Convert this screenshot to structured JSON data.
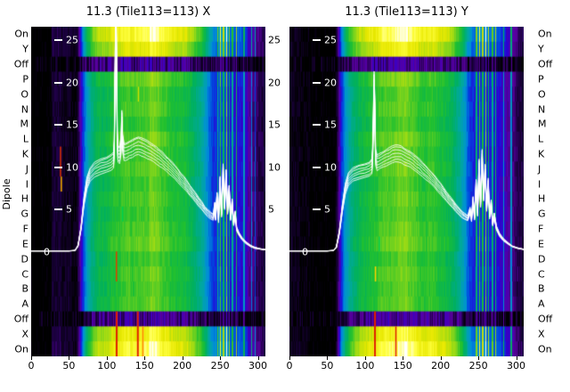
{
  "figure": {
    "ylabel": "Dipole",
    "background": "#ffffff"
  },
  "panels": [
    {
      "title": "11.3 (Tile113=113) X"
    },
    {
      "title": "11.3 (Tile113=113) Y"
    }
  ],
  "axes": {
    "x_ticks": [
      0,
      50,
      100,
      150,
      200,
      250,
      300
    ],
    "y_ticks_inside": [
      25,
      20,
      15,
      10,
      5,
      0
    ],
    "y_ticks_gap": [
      25,
      20,
      15,
      10,
      5
    ],
    "dipole_labels": [
      "On",
      "Y",
      "Off",
      "P",
      "O",
      "N",
      "M",
      "L",
      "K",
      "J",
      "I",
      "H",
      "G",
      "F",
      "E",
      "D",
      "C",
      "B",
      "A",
      "Off",
      "X",
      "On"
    ]
  },
  "style": {
    "line_color": "#ffffff",
    "tick_label_color": "#000000",
    "inside_tick_color": "#ffffff"
  },
  "chart_data": [
    {
      "type": "heatmap+line",
      "title": "11.3 (Tile113=113) X",
      "xlabel": "",
      "ylabel": "Dipole",
      "x_range": [
        0,
        310
      ],
      "y_range": [
        0,
        25
      ],
      "x_ticks": [
        0,
        50,
        100,
        150,
        200,
        250,
        300
      ],
      "rows": [
        "On",
        "Y",
        "Off",
        "P",
        "O",
        "N",
        "M",
        "L",
        "K",
        "J",
        "I",
        "H",
        "G",
        "F",
        "E",
        "D",
        "C",
        "B",
        "A",
        "Off",
        "X",
        "On"
      ],
      "row_gains": [
        1.38,
        1.26,
        0.2,
        1.04,
        0.98,
        1.0,
        0.96,
        1.02,
        0.99,
        1.01,
        0.97,
        1.0,
        0.98,
        1.01,
        1.03,
        0.97,
        1.0,
        0.98,
        1.0,
        0.2,
        1.3,
        1.38
      ],
      "profile": [
        [
          0,
          0.02
        ],
        [
          60,
          0.02
        ],
        [
          64,
          0.12
        ],
        [
          68,
          0.26
        ],
        [
          73,
          0.38
        ],
        [
          80,
          0.47
        ],
        [
          88,
          0.53
        ],
        [
          100,
          0.56
        ],
        [
          115,
          0.58
        ],
        [
          130,
          0.61
        ],
        [
          145,
          0.64
        ],
        [
          160,
          0.65
        ],
        [
          175,
          0.61
        ],
        [
          190,
          0.59
        ],
        [
          205,
          0.56
        ],
        [
          215,
          0.51
        ],
        [
          225,
          0.43
        ],
        [
          233,
          0.34
        ],
        [
          240,
          0.27
        ],
        [
          248,
          0.24
        ],
        [
          258,
          0.24
        ],
        [
          268,
          0.23
        ],
        [
          275,
          0.2
        ],
        [
          282,
          0.17
        ],
        [
          290,
          0.14
        ],
        [
          300,
          0.1
        ],
        [
          310,
          0.07
        ]
      ],
      "streaks": [
        [
          246,
          0.22
        ],
        [
          250,
          0.34
        ],
        [
          254,
          0.26
        ],
        [
          258,
          0.4
        ],
        [
          262,
          0.28
        ],
        [
          266,
          0.22
        ],
        [
          271,
          0.32
        ],
        [
          281,
          0.18
        ],
        [
          291,
          0.22
        ],
        [
          296,
          0.18
        ]
      ],
      "specks": [
        {
          "c": 38,
          "r": 8,
          "n": 2,
          "col": "#e03000",
          "w": 1.5
        },
        {
          "c": 39,
          "r": 10,
          "n": 1,
          "col": "#ffb000",
          "w": 1.5
        },
        {
          "c": 112,
          "r": 15,
          "n": 2,
          "col": "#e04000",
          "w": 1.5
        },
        {
          "c": 112,
          "r": 19,
          "n": 3,
          "col": "#e02000",
          "w": 2
        },
        {
          "c": 120,
          "r": 12,
          "n": 1,
          "col": "#00d050",
          "w": 1.5
        },
        {
          "c": 140,
          "r": 19,
          "n": 3,
          "col": "#e02000",
          "w": 2
        },
        {
          "c": 141,
          "r": 4,
          "n": 1,
          "col": "#cce000",
          "w": 1.5
        },
        {
          "c": 147,
          "r": 20,
          "n": 2,
          "col": "#ff8000",
          "w": 1.5
        }
      ],
      "line_scales": [
        1,
        0.97,
        0.94,
        0.91,
        0.88,
        1.015,
        0.855
      ],
      "line_keypoints": [
        [
          0,
          0.15
        ],
        [
          50,
          0.15
        ],
        [
          58,
          0.2
        ],
        [
          62,
          0.8
        ],
        [
          66,
          3
        ],
        [
          70,
          6.5
        ],
        [
          74,
          8.8
        ],
        [
          78,
          9.8
        ],
        [
          84,
          10.4
        ],
        [
          92,
          10.8
        ],
        [
          100,
          11
        ],
        [
          106,
          11.3
        ],
        [
          109,
          11.6
        ],
        [
          110,
          13
        ],
        [
          111,
          22
        ],
        [
          112,
          29
        ],
        [
          113,
          25
        ],
        [
          114,
          14
        ],
        [
          115,
          12.4
        ],
        [
          117,
          12.2
        ],
        [
          119,
          13.5
        ],
        [
          120,
          16.5
        ],
        [
          121,
          13.8
        ],
        [
          123,
          12.6
        ],
        [
          126,
          12.7
        ],
        [
          130,
          12.9
        ],
        [
          134,
          13.1
        ],
        [
          138,
          13.3
        ],
        [
          142,
          13.4
        ],
        [
          146,
          13.3
        ],
        [
          150,
          13.1
        ],
        [
          154,
          12.9
        ],
        [
          158,
          12.7
        ],
        [
          162,
          12.5
        ],
        [
          166,
          12.2
        ],
        [
          170,
          11.9
        ],
        [
          174,
          11.6
        ],
        [
          178,
          11.2
        ],
        [
          182,
          10.9
        ],
        [
          186,
          10.5
        ],
        [
          190,
          10.1
        ],
        [
          194,
          9.7
        ],
        [
          198,
          9.2
        ],
        [
          202,
          8.8
        ],
        [
          206,
          8.3
        ],
        [
          210,
          7.8
        ],
        [
          214,
          7.3
        ],
        [
          218,
          6.8
        ],
        [
          222,
          6.3
        ],
        [
          226,
          5.8
        ],
        [
          230,
          5.3
        ],
        [
          234,
          4.9
        ],
        [
          238,
          4.6
        ],
        [
          241,
          4.4
        ],
        [
          243,
          5.8
        ],
        [
          244,
          4.3
        ],
        [
          246,
          7
        ],
        [
          248,
          4.1
        ],
        [
          250,
          8.8
        ],
        [
          252,
          4.8
        ],
        [
          254,
          10.3
        ],
        [
          256,
          5.8
        ],
        [
          258,
          9.6
        ],
        [
          260,
          5.2
        ],
        [
          262,
          7.8
        ],
        [
          264,
          4.4
        ],
        [
          266,
          6.2
        ],
        [
          268,
          3.6
        ],
        [
          270,
          4.8
        ],
        [
          272,
          2.9
        ],
        [
          275,
          2.3
        ],
        [
          279,
          1.7
        ],
        [
          284,
          1.2
        ],
        [
          290,
          0.8
        ],
        [
          296,
          0.55
        ],
        [
          303,
          0.4
        ],
        [
          310,
          0.3
        ]
      ],
      "colormap": [
        [
          0,
          "#000000"
        ],
        [
          0.07,
          "#20004a"
        ],
        [
          0.13,
          "#5a00a0"
        ],
        [
          0.2,
          "#2a00d4"
        ],
        [
          0.27,
          "#0048e0"
        ],
        [
          0.34,
          "#0090d8"
        ],
        [
          0.42,
          "#00a8a0"
        ],
        [
          0.5,
          "#00b060"
        ],
        [
          0.58,
          "#20c030"
        ],
        [
          0.68,
          "#90d818"
        ],
        [
          0.78,
          "#e8e800"
        ],
        [
          0.86,
          "#ffff40"
        ],
        [
          0.93,
          "#ffffff"
        ],
        [
          1,
          "#ffffff"
        ]
      ]
    },
    {
      "type": "heatmap+line",
      "title": "11.3 (Tile113=113) Y",
      "xlabel": "",
      "ylabel": "Dipole",
      "x_range": [
        0,
        310
      ],
      "y_range": [
        0,
        25
      ],
      "x_ticks": [
        0,
        50,
        100,
        150,
        200,
        250,
        300
      ],
      "rows": [
        "On",
        "Y",
        "Off",
        "P",
        "O",
        "N",
        "M",
        "L",
        "K",
        "J",
        "I",
        "H",
        "G",
        "F",
        "E",
        "D",
        "C",
        "B",
        "A",
        "Off",
        "X",
        "On"
      ],
      "row_gains": [
        1.38,
        1.26,
        0.2,
        1.04,
        0.98,
        1.0,
        0.96,
        1.02,
        0.99,
        1.01,
        0.97,
        1.0,
        0.98,
        1.01,
        1.03,
        0.97,
        1.0,
        0.98,
        1.0,
        0.2,
        1.3,
        1.38
      ],
      "profile": [
        [
          0,
          0.02
        ],
        [
          60,
          0.02
        ],
        [
          64,
          0.12
        ],
        [
          68,
          0.26
        ],
        [
          73,
          0.38
        ],
        [
          80,
          0.47
        ],
        [
          88,
          0.53
        ],
        [
          100,
          0.56
        ],
        [
          115,
          0.58
        ],
        [
          130,
          0.61
        ],
        [
          145,
          0.64
        ],
        [
          160,
          0.65
        ],
        [
          175,
          0.61
        ],
        [
          190,
          0.59
        ],
        [
          205,
          0.56
        ],
        [
          215,
          0.51
        ],
        [
          225,
          0.43
        ],
        [
          233,
          0.34
        ],
        [
          240,
          0.27
        ],
        [
          248,
          0.24
        ],
        [
          258,
          0.24
        ],
        [
          268,
          0.23
        ],
        [
          275,
          0.2
        ],
        [
          282,
          0.17
        ],
        [
          290,
          0.14
        ],
        [
          300,
          0.1
        ],
        [
          310,
          0.07
        ]
      ],
      "streaks": [
        [
          247,
          0.25
        ],
        [
          251,
          0.36
        ],
        [
          255,
          0.3
        ],
        [
          259,
          0.42
        ],
        [
          263,
          0.3
        ],
        [
          268,
          0.24
        ],
        [
          272,
          0.3
        ],
        [
          283,
          0.2
        ],
        [
          293,
          0.24
        ]
      ],
      "specks": [
        {
          "c": 112,
          "r": 19,
          "n": 3,
          "col": "#e02000",
          "w": 2
        },
        {
          "c": 118,
          "r": 14,
          "n": 1,
          "col": "#00d050",
          "w": 1.5
        },
        {
          "c": 140,
          "r": 20,
          "n": 2,
          "col": "#e02000",
          "w": 1.5
        },
        {
          "c": 113,
          "r": 16,
          "n": 1,
          "col": "#ffd000",
          "w": 1.5
        }
      ],
      "line_scales": [
        1,
        0.97,
        0.94,
        0.91,
        0.88,
        1.015,
        0.855
      ],
      "line_keypoints": [
        [
          0,
          0.15
        ],
        [
          50,
          0.15
        ],
        [
          58,
          0.2
        ],
        [
          62,
          0.6
        ],
        [
          66,
          2.5
        ],
        [
          70,
          5.5
        ],
        [
          74,
          8
        ],
        [
          78,
          9.2
        ],
        [
          84,
          9.8
        ],
        [
          92,
          10.1
        ],
        [
          100,
          10.3
        ],
        [
          106,
          10.5
        ],
        [
          109,
          10.8
        ],
        [
          110,
          12
        ],
        [
          111,
          16
        ],
        [
          112,
          21
        ],
        [
          113,
          18
        ],
        [
          114,
          12
        ],
        [
          116,
          11.3
        ],
        [
          120,
          11.5
        ],
        [
          124,
          11.7
        ],
        [
          128,
          11.9
        ],
        [
          132,
          12.1
        ],
        [
          136,
          12.3
        ],
        [
          140,
          12.4
        ],
        [
          144,
          12.4
        ],
        [
          148,
          12.3
        ],
        [
          152,
          12.1
        ],
        [
          156,
          11.9
        ],
        [
          160,
          11.7
        ],
        [
          164,
          11.4
        ],
        [
          168,
          11.1
        ],
        [
          172,
          10.8
        ],
        [
          176,
          10.4
        ],
        [
          180,
          10.1
        ],
        [
          184,
          9.7
        ],
        [
          188,
          9.3
        ],
        [
          192,
          8.9
        ],
        [
          196,
          8.4
        ],
        [
          200,
          8
        ],
        [
          204,
          7.5
        ],
        [
          208,
          7
        ],
        [
          212,
          6.5
        ],
        [
          216,
          6.1
        ],
        [
          220,
          5.6
        ],
        [
          224,
          5.2
        ],
        [
          228,
          4.8
        ],
        [
          232,
          4.5
        ],
        [
          236,
          4.3
        ],
        [
          239,
          5.2
        ],
        [
          241,
          4.2
        ],
        [
          243,
          6.5
        ],
        [
          245,
          4.4
        ],
        [
          247,
          8.5
        ],
        [
          249,
          5
        ],
        [
          251,
          10.8
        ],
        [
          253,
          6.2
        ],
        [
          255,
          12
        ],
        [
          257,
          7
        ],
        [
          259,
          10.2
        ],
        [
          261,
          5.6
        ],
        [
          263,
          8.6
        ],
        [
          265,
          4.6
        ],
        [
          267,
          6.1
        ],
        [
          269,
          3.6
        ],
        [
          271,
          4.6
        ],
        [
          274,
          3
        ],
        [
          278,
          2.2
        ],
        [
          283,
          1.6
        ],
        [
          289,
          1.1
        ],
        [
          295,
          0.7
        ],
        [
          302,
          0.5
        ],
        [
          310,
          0.35
        ]
      ],
      "colormap": [
        [
          0,
          "#000000"
        ],
        [
          0.07,
          "#20004a"
        ],
        [
          0.13,
          "#5a00a0"
        ],
        [
          0.2,
          "#2a00d4"
        ],
        [
          0.27,
          "#0048e0"
        ],
        [
          0.34,
          "#0090d8"
        ],
        [
          0.42,
          "#00a8a0"
        ],
        [
          0.5,
          "#00b060"
        ],
        [
          0.58,
          "#20c030"
        ],
        [
          0.68,
          "#90d818"
        ],
        [
          0.78,
          "#e8e800"
        ],
        [
          0.86,
          "#ffff40"
        ],
        [
          0.93,
          "#ffffff"
        ],
        [
          1,
          "#ffffff"
        ]
      ]
    }
  ]
}
